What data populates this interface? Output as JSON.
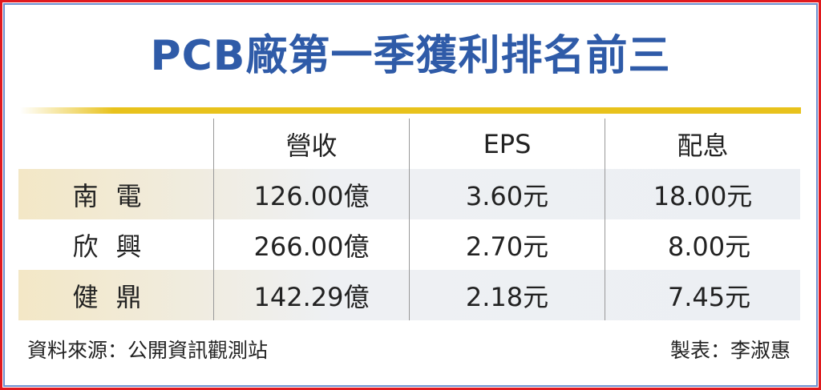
{
  "title": "PCB廠第一季獲利排名前三",
  "table": {
    "headers": [
      "",
      "營收",
      "EPS",
      "配息"
    ],
    "rows": [
      [
        "南電",
        "126.00億",
        "3.60元",
        "18.00元"
      ],
      [
        "欣興",
        "266.00億",
        "2.70元",
        "8.00元"
      ],
      [
        "健鼎",
        "142.29億",
        "2.18元",
        "7.45元"
      ]
    ]
  },
  "footer": {
    "source": "資料來源：公開資訊觀測站",
    "author": "製表：李淑惠"
  },
  "colors": {
    "title": "#2f5ba8",
    "accent_bar": "#e8c21c",
    "border": "#e0191e"
  }
}
